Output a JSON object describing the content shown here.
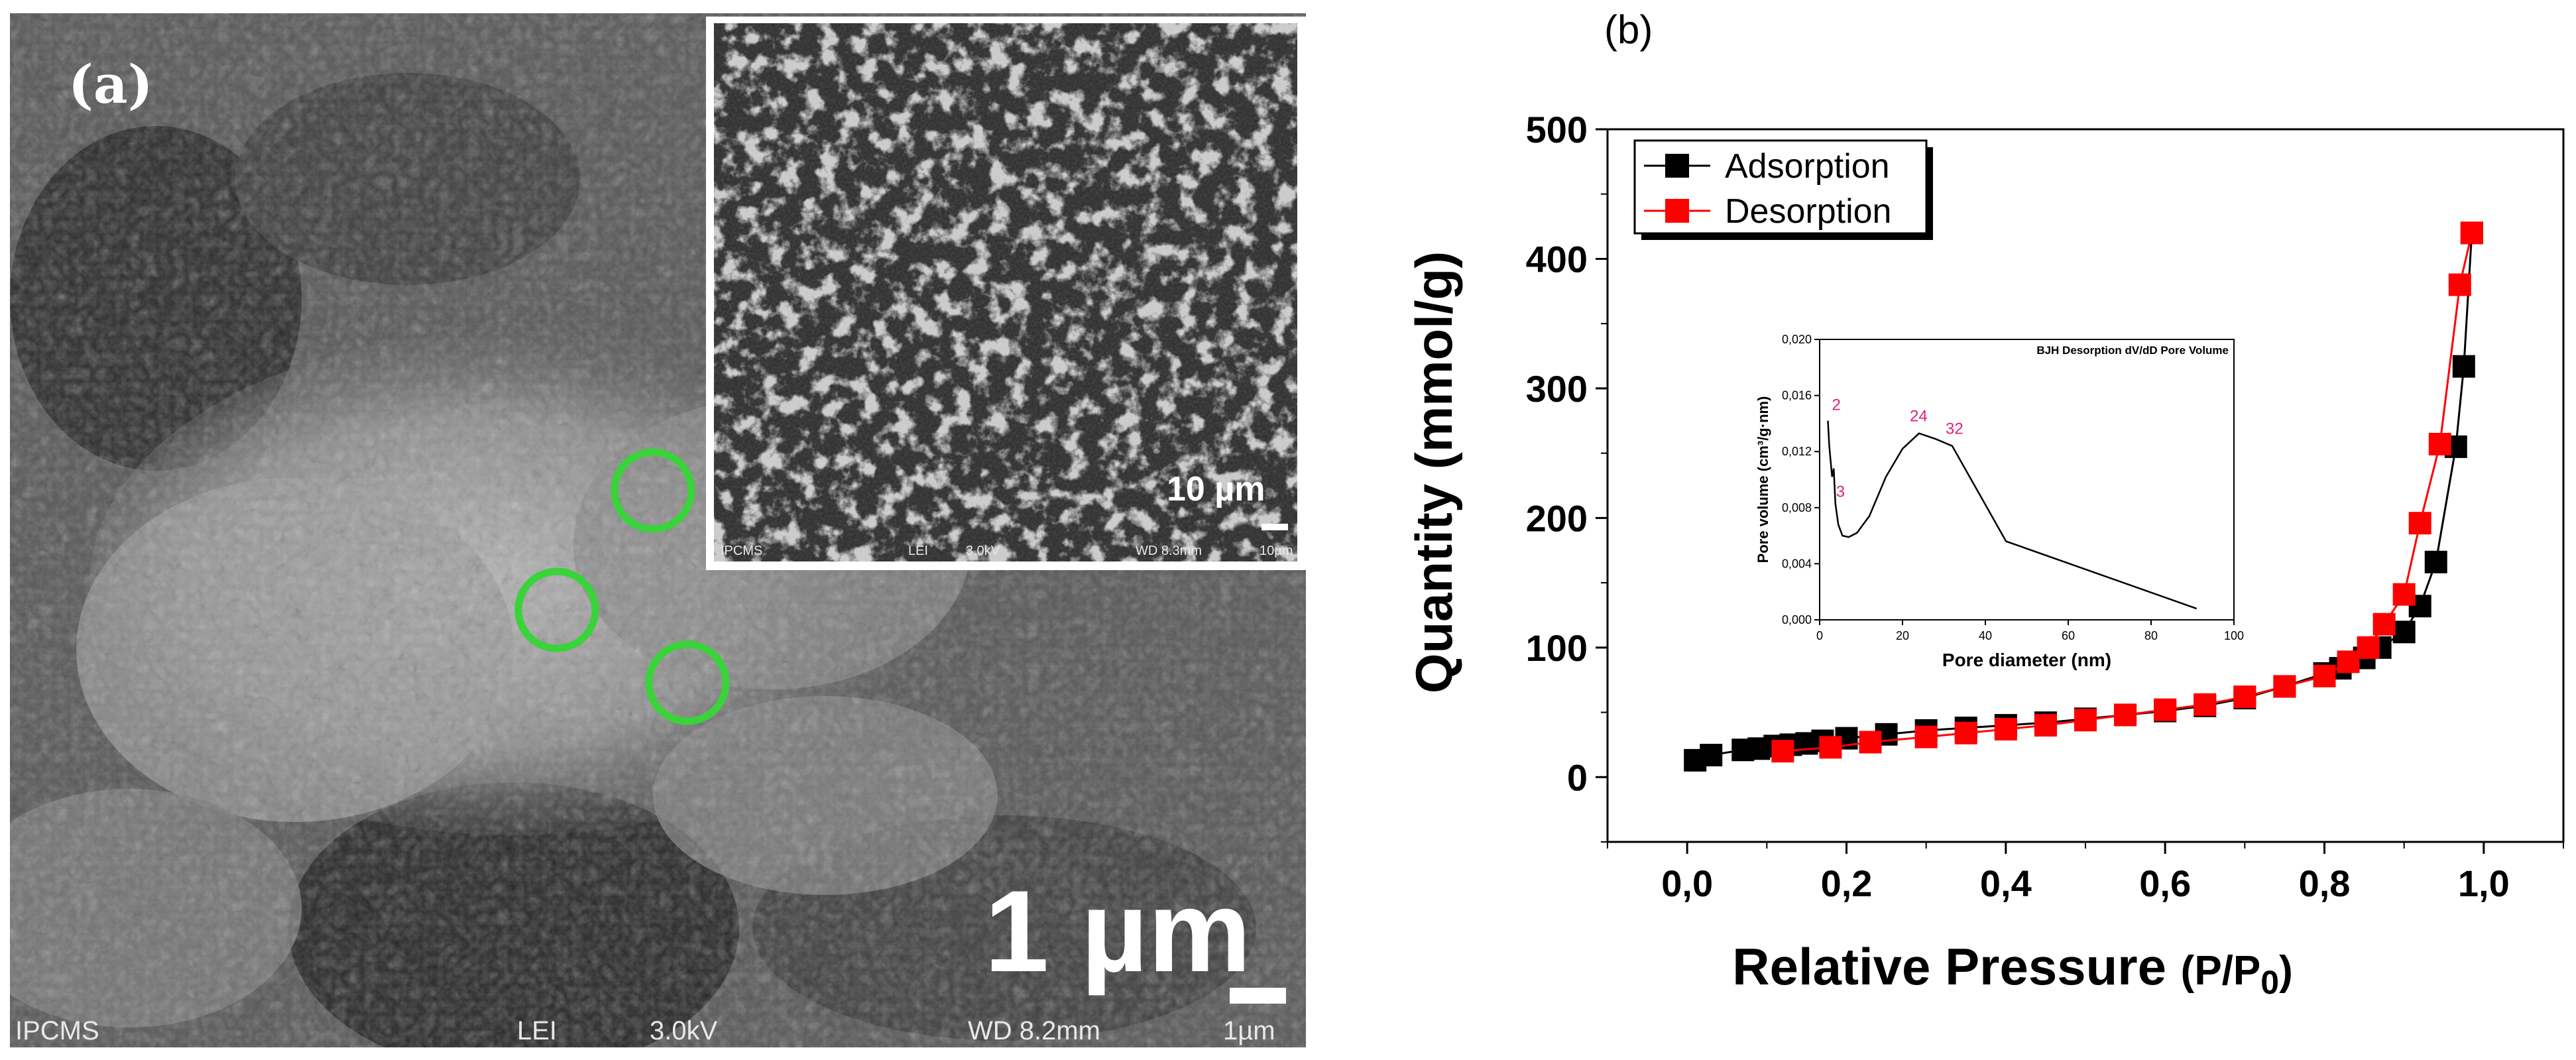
{
  "panel_a": {
    "label": "(a)",
    "scale_main": "1 µm",
    "info_main": [
      "IPCMS",
      "LEI",
      "3.0kV",
      "WD 8.2mm",
      "1µm"
    ],
    "inset": {
      "scale": "10 µm",
      "info": [
        "IPCMS",
        "LEI",
        "3.0kV",
        "WD 8.3mm",
        "10µm"
      ]
    },
    "marker_color": "#39d33a"
  },
  "panel_b": {
    "label": "(b)",
    "chart_data": [
      {
        "type": "line",
        "xlabel": "Relative Pressure (P/P0)",
        "ylabel": "Quantity (mmol/g)",
        "xlim": [
          -0.1,
          1.1
        ],
        "ylim": [
          -50,
          500
        ],
        "x_ticks": [
          "0,0",
          "0,2",
          "0,4",
          "0,6",
          "0,8",
          "1,0"
        ],
        "y_ticks": [
          "0",
          "100",
          "200",
          "300",
          "400",
          "500"
        ],
        "legend_position": "top-left",
        "series": [
          {
            "name": "Adsorption",
            "color": "#000000",
            "x": [
              0.01,
              0.03,
              0.07,
              0.09,
              0.11,
              0.13,
              0.15,
              0.17,
              0.2,
              0.25,
              0.3,
              0.35,
              0.4,
              0.45,
              0.5,
              0.55,
              0.6,
              0.65,
              0.7,
              0.75,
              0.8,
              0.82,
              0.85,
              0.87,
              0.9,
              0.92,
              0.94,
              0.965,
              0.975,
              0.985
            ],
            "values": [
              13,
              17,
              21,
              22,
              24,
              25,
              26,
              28,
              30,
              33,
              36,
              38,
              40,
              42,
              45,
              48,
              51,
              55,
              61,
              70,
              80,
              84,
              92,
              100,
              112,
              132,
              166,
              255,
              317,
              420
            ]
          },
          {
            "name": "Desorption",
            "color": "#ff0000",
            "x": [
              0.12,
              0.18,
              0.23,
              0.3,
              0.35,
              0.4,
              0.45,
              0.5,
              0.55,
              0.6,
              0.65,
              0.7,
              0.75,
              0.8,
              0.83,
              0.855,
              0.875,
              0.9,
              0.92,
              0.945,
              0.97,
              0.985
            ],
            "values": [
              20,
              23,
              27,
              31,
              34,
              37,
              40,
              44,
              48,
              52,
              56,
              62,
              70,
              78,
              89,
              100,
              118,
              141,
              196,
              257,
              380,
              420
            ]
          }
        ]
      },
      {
        "type": "line",
        "title": "BJH Desorption dV/dD Pore Volume",
        "xlabel": "Pore diameter (nm)",
        "ylabel": "Pore volume (cm³/g·nm)",
        "xlim": [
          0,
          100
        ],
        "ylim": [
          0,
          0.02
        ],
        "x_ticks": [
          "0",
          "20",
          "40",
          "60",
          "80",
          "100"
        ],
        "y_ticks": [
          "0,000",
          "0,004",
          "0,008",
          "0,012",
          "0,016",
          "0,020"
        ],
        "annotations": [
          "2",
          "3",
          "24",
          "32"
        ],
        "series": [
          {
            "color": "#000000",
            "x": [
              2,
              2.3,
              2.6,
              3,
              3.4,
              3.8,
              4.5,
              5.5,
              7,
              9,
              12,
              16,
              20,
              24,
              28,
              32,
              45,
              91
            ],
            "values": [
              0.0142,
              0.0125,
              0.0115,
              0.0102,
              0.0108,
              0.0083,
              0.0068,
              0.006,
              0.0059,
              0.0062,
              0.0074,
              0.0102,
              0.0122,
              0.0133,
              0.0129,
              0.0124,
              0.0056,
              0.0008
            ]
          }
        ]
      }
    ]
  }
}
